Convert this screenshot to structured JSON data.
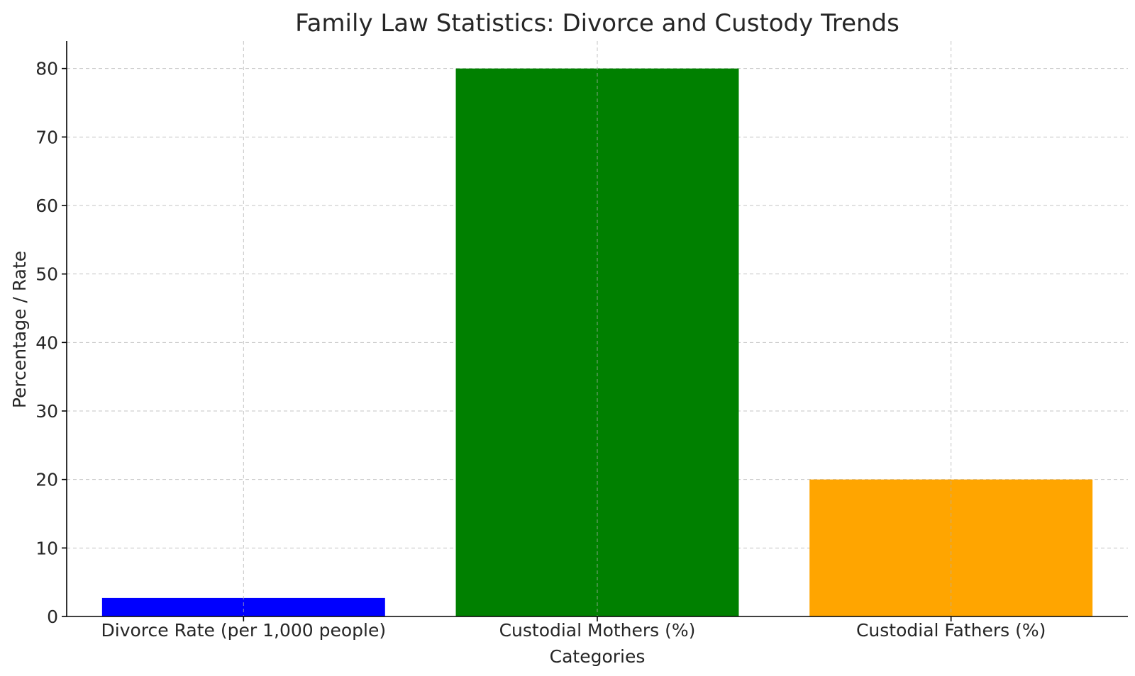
{
  "chart_data": {
    "type": "bar",
    "title": "Family Law Statistics: Divorce and Custody Trends",
    "xlabel": "Categories",
    "ylabel": "Percentage / Rate",
    "categories": [
      "Divorce Rate (per 1,000 people)",
      "Custodial Mothers (%)",
      "Custodial Fathers (%)"
    ],
    "values": [
      2.7,
      80,
      20
    ],
    "colors": [
      "#0000ff",
      "#008000",
      "#ffa500"
    ],
    "ylim": [
      0,
      84
    ],
    "yticks": [
      0,
      10,
      20,
      30,
      40,
      50,
      60,
      70,
      80
    ],
    "grid": true,
    "legend": "none"
  }
}
